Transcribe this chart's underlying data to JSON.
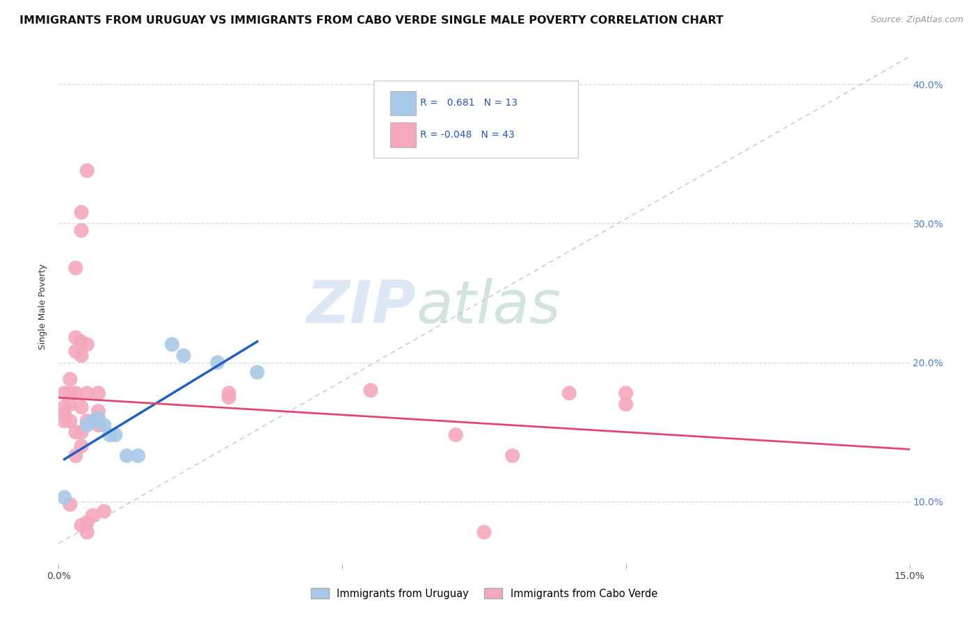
{
  "title": "IMMIGRANTS FROM URUGUAY VS IMMIGRANTS FROM CABO VERDE SINGLE MALE POVERTY CORRELATION CHART",
  "source": "Source: ZipAtlas.com",
  "ylabel": "Single Male Poverty",
  "legend_uruguay": "Immigrants from Uruguay",
  "legend_caboverde": "Immigrants from Cabo Verde",
  "R_uruguay": "0.681",
  "N_uruguay": "13",
  "R_caboverde": "-0.048",
  "N_caboverde": "43",
  "color_uruguay": "#a8c8e8",
  "color_caboverde": "#f4a8bc",
  "line_color_uruguay": "#2060c0",
  "line_color_caboverde": "#e04870",
  "background_color": "#ffffff",
  "scatter_uruguay": [
    [
      0.001,
      0.103
    ],
    [
      0.005,
      0.155
    ],
    [
      0.006,
      0.158
    ],
    [
      0.007,
      0.16
    ],
    [
      0.008,
      0.155
    ],
    [
      0.009,
      0.148
    ],
    [
      0.01,
      0.148
    ],
    [
      0.012,
      0.133
    ],
    [
      0.014,
      0.133
    ],
    [
      0.02,
      0.213
    ],
    [
      0.022,
      0.205
    ],
    [
      0.028,
      0.2
    ],
    [
      0.035,
      0.193
    ]
  ],
  "scatter_caboverde": [
    [
      0.001,
      0.178
    ],
    [
      0.001,
      0.168
    ],
    [
      0.001,
      0.163
    ],
    [
      0.001,
      0.158
    ],
    [
      0.002,
      0.188
    ],
    [
      0.002,
      0.178
    ],
    [
      0.002,
      0.17
    ],
    [
      0.002,
      0.158
    ],
    [
      0.002,
      0.098
    ],
    [
      0.003,
      0.268
    ],
    [
      0.003,
      0.218
    ],
    [
      0.003,
      0.208
    ],
    [
      0.003,
      0.178
    ],
    [
      0.003,
      0.15
    ],
    [
      0.003,
      0.133
    ],
    [
      0.004,
      0.308
    ],
    [
      0.004,
      0.295
    ],
    [
      0.004,
      0.215
    ],
    [
      0.004,
      0.205
    ],
    [
      0.004,
      0.168
    ],
    [
      0.004,
      0.15
    ],
    [
      0.004,
      0.14
    ],
    [
      0.004,
      0.083
    ],
    [
      0.005,
      0.338
    ],
    [
      0.005,
      0.213
    ],
    [
      0.005,
      0.178
    ],
    [
      0.005,
      0.158
    ],
    [
      0.005,
      0.085
    ],
    [
      0.005,
      0.078
    ],
    [
      0.006,
      0.09
    ],
    [
      0.007,
      0.178
    ],
    [
      0.007,
      0.165
    ],
    [
      0.007,
      0.155
    ],
    [
      0.008,
      0.093
    ],
    [
      0.03,
      0.178
    ],
    [
      0.03,
      0.175
    ],
    [
      0.055,
      0.18
    ],
    [
      0.07,
      0.148
    ],
    [
      0.075,
      0.078
    ],
    [
      0.08,
      0.133
    ],
    [
      0.09,
      0.178
    ],
    [
      0.1,
      0.178
    ],
    [
      0.1,
      0.17
    ]
  ],
  "xlim": [
    0.0,
    0.15
  ],
  "ylim": [
    0.055,
    0.425
  ],
  "yticks": [
    0.1,
    0.2,
    0.3,
    0.4
  ],
  "ytick_labels": [
    "10.0%",
    "20.0%",
    "30.0%",
    "40.0%"
  ],
  "xticks": [
    0.0,
    0.05,
    0.1,
    0.15
  ],
  "xtick_labels": [
    "0.0%",
    "",
    "",
    "15.0%"
  ],
  "grid_color": "#d8d8e8",
  "title_fontsize": 11.5,
  "source_fontsize": 9,
  "axis_label_fontsize": 9,
  "tick_fontsize": 10
}
